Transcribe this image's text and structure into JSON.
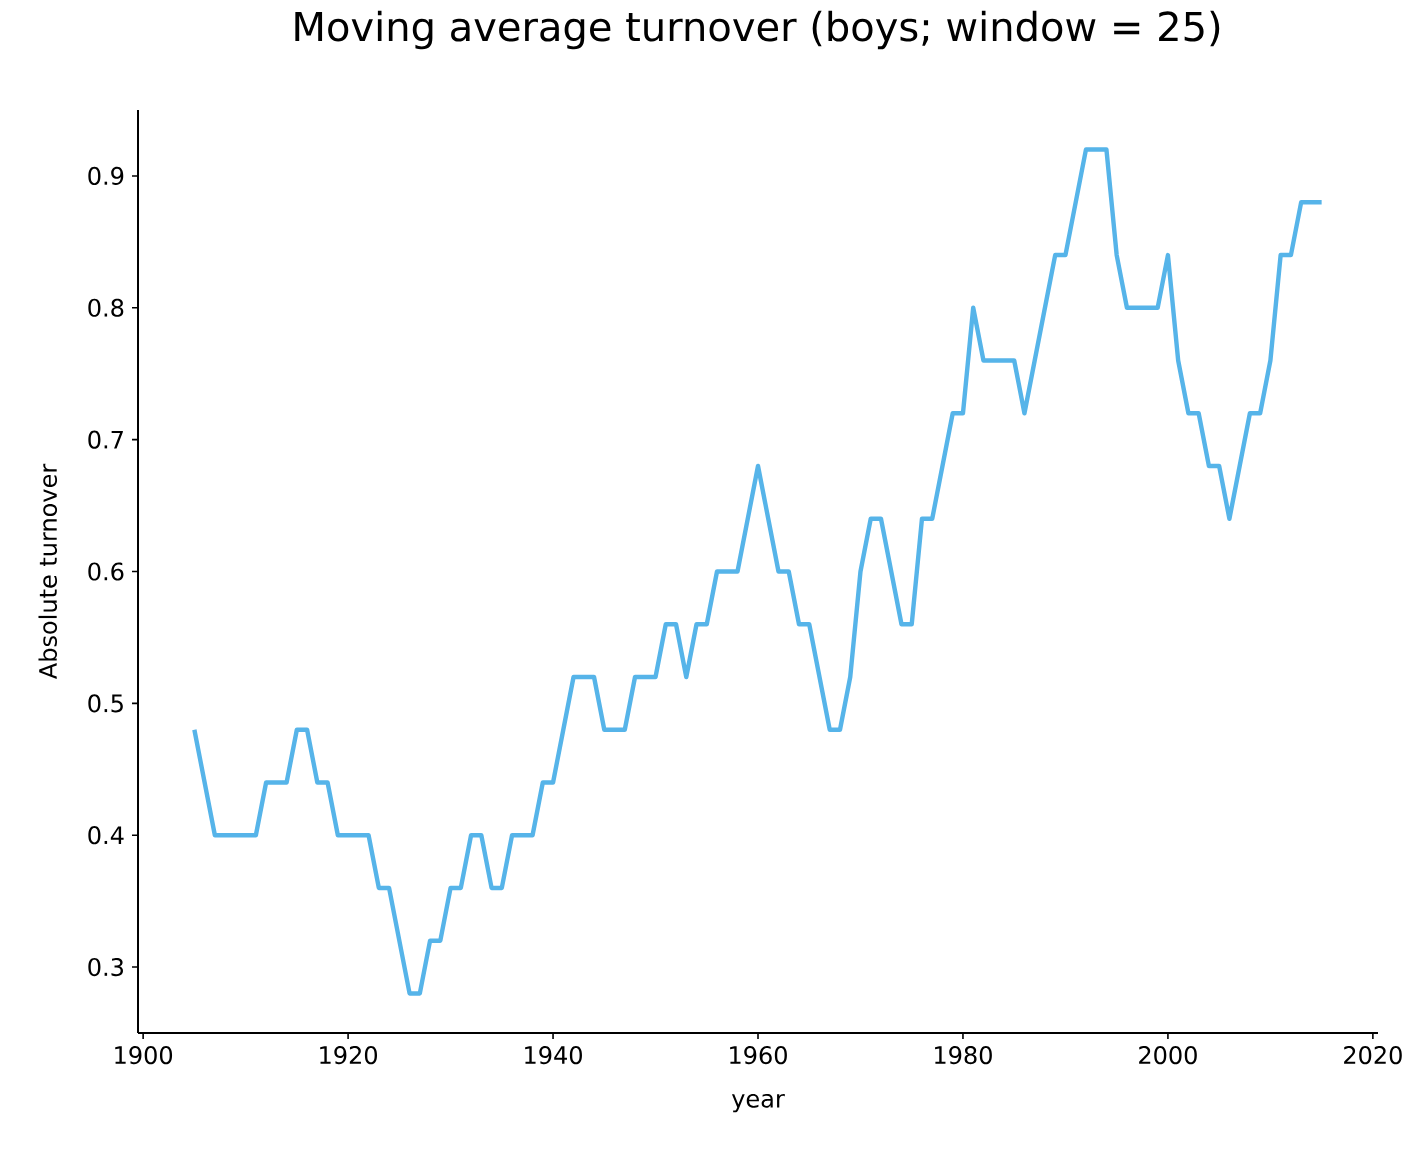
{
  "chart_data": {
    "type": "line",
    "title": "Moving average turnover (boys; window = 25)",
    "xlabel": "year",
    "ylabel": "Absolute turnover",
    "x": [
      1905,
      1906,
      1907,
      1908,
      1909,
      1910,
      1911,
      1912,
      1913,
      1914,
      1915,
      1916,
      1917,
      1918,
      1919,
      1920,
      1921,
      1922,
      1923,
      1924,
      1925,
      1926,
      1927,
      1928,
      1929,
      1930,
      1931,
      1932,
      1933,
      1934,
      1935,
      1936,
      1937,
      1938,
      1939,
      1940,
      1941,
      1942,
      1943,
      1944,
      1945,
      1946,
      1947,
      1948,
      1949,
      1950,
      1951,
      1952,
      1953,
      1954,
      1955,
      1956,
      1957,
      1958,
      1959,
      1960,
      1961,
      1962,
      1963,
      1964,
      1965,
      1966,
      1967,
      1968,
      1969,
      1970,
      1971,
      1972,
      1973,
      1974,
      1975,
      1976,
      1977,
      1978,
      1979,
      1980,
      1981,
      1982,
      1983,
      1984,
      1985,
      1986,
      1987,
      1988,
      1989,
      1990,
      1991,
      1992,
      1993,
      1994,
      1995,
      1996,
      1997,
      1998,
      1999,
      2000,
      2001,
      2002,
      2003,
      2004,
      2005,
      2006,
      2007,
      2008,
      2009,
      2010,
      2011,
      2012,
      2013,
      2014,
      2015
    ],
    "values": [
      0.48,
      0.44,
      0.4,
      0.4,
      0.4,
      0.4,
      0.4,
      0.44,
      0.44,
      0.44,
      0.48,
      0.48,
      0.44,
      0.44,
      0.4,
      0.4,
      0.4,
      0.4,
      0.36,
      0.36,
      0.32,
      0.28,
      0.28,
      0.32,
      0.32,
      0.36,
      0.36,
      0.4,
      0.4,
      0.36,
      0.36,
      0.4,
      0.4,
      0.4,
      0.44,
      0.44,
      0.48,
      0.52,
      0.52,
      0.52,
      0.48,
      0.48,
      0.48,
      0.52,
      0.52,
      0.52,
      0.56,
      0.56,
      0.52,
      0.56,
      0.56,
      0.6,
      0.6,
      0.6,
      0.64,
      0.68,
      0.64,
      0.6,
      0.6,
      0.56,
      0.56,
      0.52,
      0.48,
      0.48,
      0.52,
      0.6,
      0.64,
      0.64,
      0.6,
      0.56,
      0.56,
      0.64,
      0.64,
      0.68,
      0.72,
      0.72,
      0.8,
      0.76,
      0.76,
      0.76,
      0.76,
      0.72,
      0.76,
      0.8,
      0.84,
      0.84,
      0.88,
      0.92,
      0.92,
      0.92,
      0.84,
      0.8,
      0.8,
      0.8,
      0.8,
      0.84,
      0.76,
      0.72,
      0.72,
      0.68,
      0.68,
      0.64,
      0.68,
      0.72,
      0.72,
      0.76,
      0.84,
      0.84,
      0.88,
      0.88,
      0.88
    ],
    "color": "#56b4e9",
    "line_style": "solid",
    "xlim": [
      1899.5,
      2020.5
    ],
    "ylim": [
      0.25,
      0.95
    ],
    "xticks": [
      1900,
      1920,
      1940,
      1960,
      1980,
      2000,
      2020
    ],
    "yticks": [
      0.3,
      0.4,
      0.5,
      0.6,
      0.7,
      0.8,
      0.9
    ]
  }
}
